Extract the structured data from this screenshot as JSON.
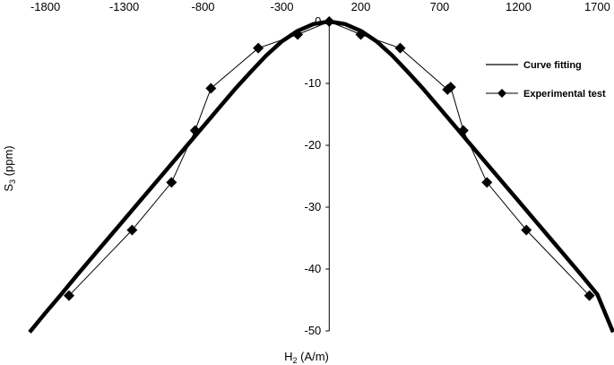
{
  "chart_data": {
    "type": "line",
    "xlabel": {
      "main": "H",
      "sub": "2",
      "rest": " (A/m)"
    },
    "ylabel": {
      "main": "S",
      "sub": "3",
      "rest": " (ppm)"
    },
    "xlim": [
      -1900,
      1800
    ],
    "ylim": [
      -50,
      0
    ],
    "xticks": [
      -1800,
      -1300,
      -800,
      -300,
      200,
      700,
      1200,
      1700
    ],
    "yticks": [
      0,
      -10,
      -20,
      -30,
      -40,
      -50
    ],
    "grid": false,
    "legend_position": "right",
    "series": [
      {
        "name": "Curve fitting",
        "style": "line",
        "color": "#000000",
        "x": [
          -1900,
          -1800,
          -1700,
          -1600,
          -1500,
          -1400,
          -1300,
          -1200,
          -1100,
          -1000,
          -900,
          -800,
          -700,
          -600,
          -500,
          -400,
          -300,
          -200,
          -100,
          0,
          100,
          200,
          300,
          400,
          500,
          600,
          700,
          800,
          900,
          1000,
          1100,
          1200,
          1300,
          1400,
          1500,
          1600,
          1700,
          1800
        ],
        "y": [
          -50.2,
          -47.1,
          -44.1,
          -41.0,
          -38.0,
          -35.0,
          -32.0,
          -29.0,
          -26.0,
          -23.0,
          -20.0,
          -17.0,
          -14.0,
          -11.0,
          -8.2,
          -5.5,
          -3.2,
          -1.5,
          -0.4,
          0,
          -0.4,
          -1.5,
          -3.2,
          -5.5,
          -8.2,
          -11.0,
          -14.0,
          -17.0,
          -20.0,
          -23.0,
          -26.0,
          -29.0,
          -32.0,
          -35.0,
          -38.0,
          -41.0,
          -44.1,
          -50.2
        ]
      },
      {
        "name": "Experimental test",
        "style": "line-marker",
        "marker": "diamond",
        "color": "#000000",
        "x": [
          -1650,
          -1250,
          -1000,
          -850,
          -750,
          -450,
          -200,
          0,
          200,
          450,
          750,
          770,
          850,
          1000,
          1250,
          1650
        ],
        "y": [
          -44.3,
          -33.7,
          -26.0,
          -17.6,
          -10.8,
          -4.3,
          -2.1,
          0,
          -2.1,
          -4.3,
          -11.0,
          -10.6,
          -17.6,
          -26.0,
          -33.7,
          -44.3
        ]
      }
    ]
  }
}
